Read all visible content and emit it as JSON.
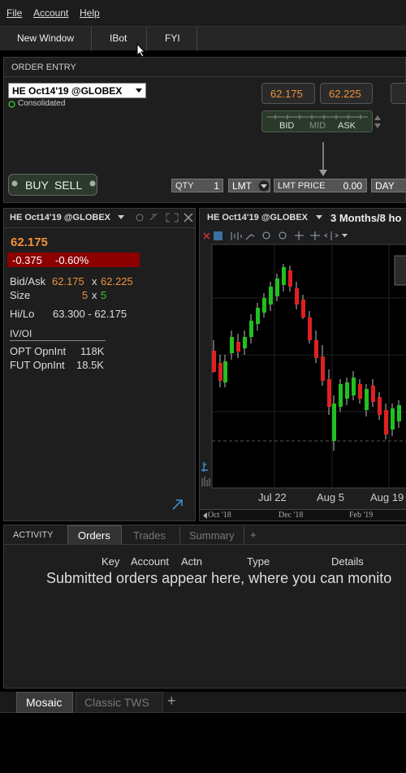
{
  "menu": [
    "File",
    "Account",
    "Help"
  ],
  "toolbar": [
    "New Window",
    "IBot",
    "FYI"
  ],
  "order_entry": {
    "title": "ORDER ENTRY",
    "symbol": "HE Oct14'19 @GLOBEX",
    "consolidated": "Consolidated",
    "bid_price": "62.175",
    "ask_price": "62.225",
    "bid_label": "BID",
    "mid_label": "MID",
    "ask_label": "ASK",
    "buy": "BUY",
    "sell": "SELL",
    "qty_label": "QTY",
    "qty": "1",
    "order_type": "LMT",
    "lmt_price_label": "LMT PRICE",
    "lmt_price": "0.00",
    "tif": "DAY"
  },
  "quote": {
    "symbol": "HE Oct14'19 @GLOBEX",
    "last": "62.175",
    "change": "-0.375",
    "change_pct": "-0.60%",
    "bid_ask_label": "Bid/Ask",
    "bid": "62.175",
    "separator": "x",
    "ask": "62.225",
    "size_label": "Size",
    "bid_size": "5",
    "ask_size": "5",
    "hilo_label": "Hi/Lo",
    "hilo": "63.300 - 62.175",
    "iv_oi_label": "IV/OI",
    "opt_label": "OPT OpnInt",
    "opt": "118K",
    "fut_label": "FUT OpnInt",
    "fut": "18.5K"
  },
  "chart": {
    "symbol": "HE Oct14'19 @GLOBEX",
    "period": "3 Months/8 ho",
    "x_labels": [
      "Jul 22",
      "Aug 5",
      "Aug 19"
    ],
    "nav_labels": [
      "Oct '18",
      "Dec '18",
      "Feb '19"
    ]
  },
  "activity": {
    "tabs": [
      "ACTIVITY",
      "Orders",
      "Trades",
      "Summary",
      "+"
    ],
    "columns": [
      "Key",
      "Account",
      "Actn",
      "Type",
      "Details"
    ],
    "message": "Submitted orders appear here, where you can monito"
  },
  "bottom_tabs": [
    "Mosaic",
    "Classic TWS",
    "+"
  ]
}
